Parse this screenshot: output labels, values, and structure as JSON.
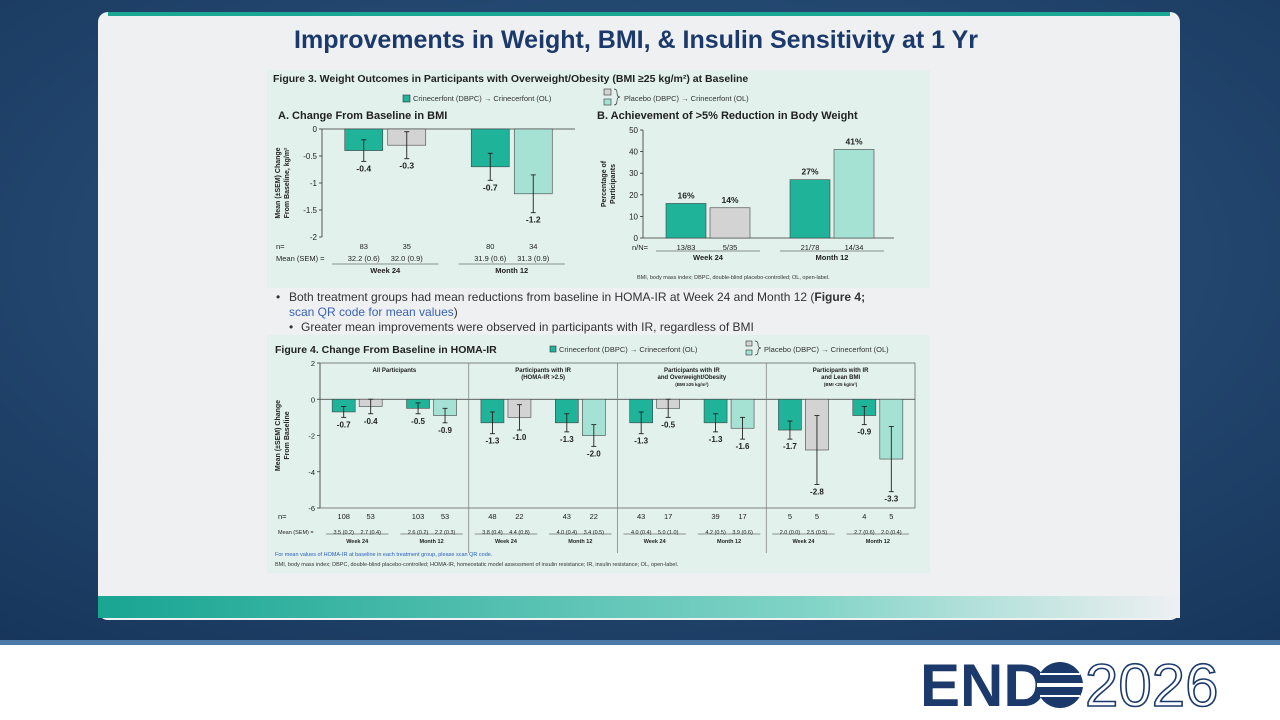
{
  "title": "Improvements in Weight, BMI, & Insulin Sensitivity at 1 Yr",
  "figure3": {
    "title": "Figure 3. Weight Outcomes in Participants with Overweight/Obesity (BMI ≥25 kg/m²) at Baseline",
    "footnote": "BMI, body mass index; DBPC, double-blind placebo-controlled; OL, open-label."
  },
  "bullets": [
    {
      "parts": [
        "Both treatment groups had mean reductions from baseline in HOMA-IR at Week 24 and Month 12 (",
        "Figure 4;",
        "scan QR code for mean values",
        ")"
      ]
    },
    {
      "text": "Greater mean improvements were observed in participants with IR, regardless of BMI"
    }
  ],
  "figure4": {
    "title": "Figure 4. Change From Baseline in HOMA-IR",
    "footnotes": [
      "For mean values of HOMA-IR at baseline in each treatment group, please scan QR code.",
      "BMI, body mass index; DBPC, double-blind placebo-controlled; HOMA-IR, homeostatic model assessment of insulin resistance; IR, insulin resistance; OL, open-label."
    ]
  },
  "logo": {
    "brand": "END",
    "year": "2026"
  },
  "chart_data": [
    {
      "type": "bar",
      "title": "A.  Change From Baseline in BMI",
      "y_label": [
        "Mean (±SEM) Change",
        "From Baseline, kg/m²"
      ],
      "categories": [
        "Week 24",
        "Month 12"
      ],
      "row_labels": [
        "n=",
        "Mean (SEM) ="
      ],
      "series": [
        {
          "name": "Crinecerfont (DBPC) → Crinecerfont (OL)",
          "color": "#1fb39a",
          "values": [
            -0.4,
            -0.7
          ],
          "errors": [
            0.2,
            0.25
          ],
          "n": [
            83,
            80
          ],
          "mean": [
            "32.2 (0.6)",
            "31.9 (0.6)"
          ]
        },
        {
          "name": "Placebo (DBPC) → Crinecerfont (OL)",
          "colors": [
            "#d3d3d3",
            "#a6e2d4"
          ],
          "values": [
            -0.3,
            -1.2
          ],
          "errors": [
            0.25,
            0.35
          ],
          "n": [
            35,
            34
          ],
          "mean": [
            "32.0 (0.9)",
            "31.3 (0.9)"
          ]
        }
      ],
      "ylim": [
        -2,
        0
      ],
      "yticks": [
        -2,
        -1.5,
        -1,
        -0.5,
        0
      ]
    },
    {
      "type": "bar",
      "title": "B.  Achievement of >5% Reduction in Body Weight",
      "y_label": [
        "Percentage of",
        "Participants"
      ],
      "categories": [
        "Week 24",
        "Month 12"
      ],
      "row_labels": [
        "n/N="
      ],
      "series": [
        {
          "name": "Crinecerfont (DBPC) → Crinecerfont (OL)",
          "color": "#1fb39a",
          "values": [
            16,
            27
          ],
          "value_labels": [
            "16%",
            "27%"
          ],
          "n": [
            "13/83",
            "21/78"
          ]
        },
        {
          "name": "Placebo (DBPC) → Crinecerfont (OL)",
          "colors": [
            "#d3d3d3",
            "#a6e2d4"
          ],
          "values": [
            14,
            41
          ],
          "value_labels": [
            "14%",
            "41%"
          ],
          "n": [
            "5/35",
            "14/34"
          ]
        }
      ],
      "ylim": [
        0,
        50
      ],
      "yticks": [
        0,
        10,
        20,
        30,
        40,
        50
      ]
    },
    {
      "type": "bar",
      "y_label": [
        "Mean (±SEM) Change",
        "From Baseline"
      ],
      "groups": [
        [
          "All Participants"
        ],
        [
          "Participants with IR",
          "(HOMA-IR >2.5)"
        ],
        [
          "Participants with IR",
          "and Overweight/Obesity",
          "(BMI ≥25 kg/m²)"
        ],
        [
          "Participants with IR",
          "and Lean BMI",
          "(BMI <25 kg/m²)"
        ]
      ],
      "categories": [
        "Week 24",
        "Month 12",
        "Week 24",
        "Month 12",
        "Week 24",
        "Month 12",
        "Week 24",
        "Month 12"
      ],
      "row_labels": [
        "n=",
        "Mean (SEM) ="
      ],
      "series": [
        {
          "name": "Crinecerfont (DBPC) → Crinecerfont (OL)",
          "color": "#1fb39a",
          "values": [
            -0.7,
            -0.5,
            -1.3,
            -1.3,
            -1.3,
            -1.3,
            -1.7,
            -0.9
          ],
          "errors": [
            0.3,
            0.3,
            0.6,
            0.5,
            0.6,
            0.5,
            0.5,
            0.5
          ],
          "n": [
            108,
            103,
            48,
            43,
            43,
            39,
            5,
            4
          ],
          "mean": [
            "3.5 (0.2)",
            "2.6 (0.2)",
            "3.8 (0.4)",
            "4.0 (0.4)",
            "4.0 (0.4)",
            "4.2 (0.5)",
            "2.0 (0.0)",
            "2.7 (0.6)"
          ]
        },
        {
          "name": "Placebo (DBPC) → Crinecerfont (OL)",
          "colors": [
            "#d3d3d3",
            "#a6e2d4",
            "#d3d3d3",
            "#a6e2d4",
            "#d3d3d3",
            "#a6e2d4",
            "#d3d3d3",
            "#a6e2d4"
          ],
          "values": [
            -0.4,
            -0.9,
            -1.0,
            -2.0,
            -0.5,
            -1.6,
            -2.8,
            -3.3
          ],
          "value_labels": [
            "-0.4",
            "-0.9",
            "-1.0",
            "-2.0",
            "-0.5",
            "-1.6",
            "-2.8",
            "-3.3"
          ],
          "errors": [
            0.4,
            0.4,
            0.7,
            0.6,
            0.5,
            0.6,
            1.9,
            1.8
          ],
          "n": [
            53,
            53,
            22,
            22,
            17,
            17,
            5,
            5
          ],
          "mean": [
            "2.7 (0.4)",
            "2.2 (0.3)",
            "4.4 (0.8)",
            "3.4 (0.5)",
            "5.0 (1.0)",
            "3.9 (0.6)",
            "2.5 (0.5)",
            "2.0 (0.4)"
          ]
        }
      ],
      "ylim": [
        -6,
        2
      ],
      "yticks": [
        -6,
        -4,
        -2,
        0,
        2
      ]
    }
  ]
}
